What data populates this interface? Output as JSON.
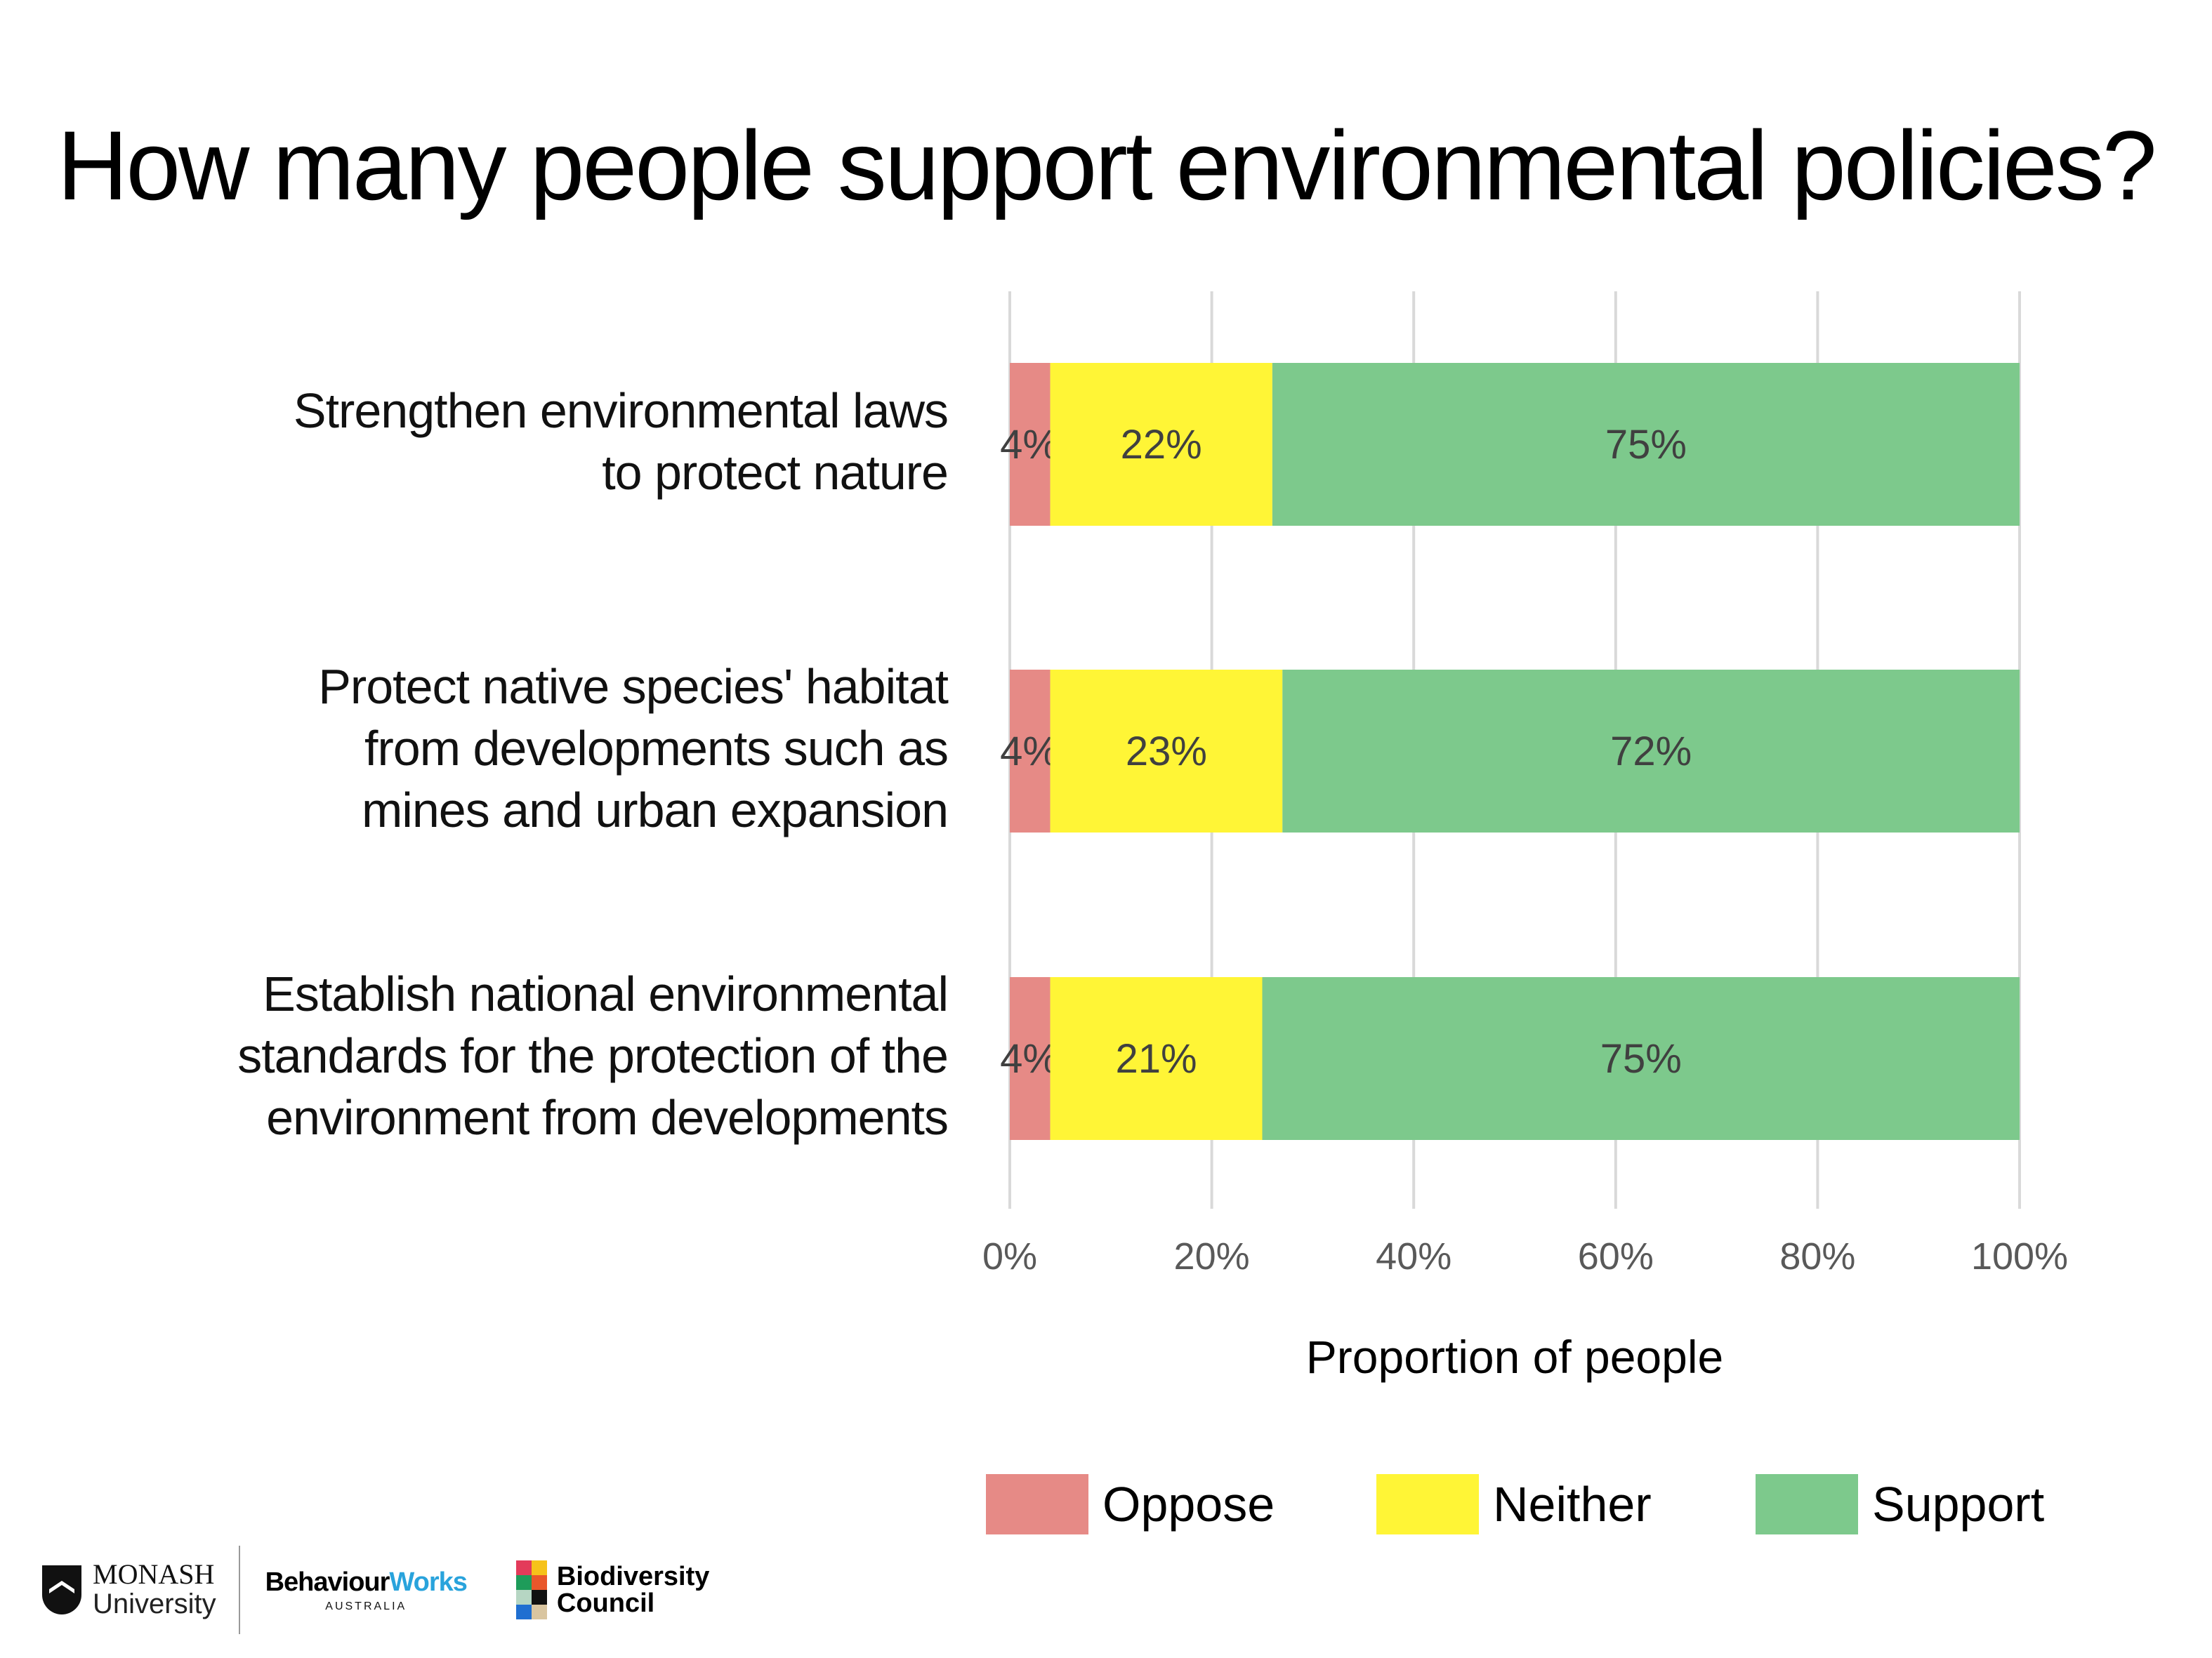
{
  "chart_data": {
    "type": "bar",
    "orientation": "horizontal",
    "stacked": true,
    "title": "How many people support environmental policies?",
    "xlabel": "Proportion of people",
    "ylabel": "",
    "xlim": [
      0,
      100
    ],
    "x_ticks": [
      "0%",
      "20%",
      "40%",
      "60%",
      "80%",
      "100%"
    ],
    "x_tick_values": [
      0,
      20,
      40,
      60,
      80,
      100
    ],
    "grid": true,
    "legend_position": "bottom-right",
    "categories": [
      "Strengthen environmental laws to protect nature",
      "Protect native species' habitat from developments such as mines and urban expansion",
      "Establish national environmental standards for the protection of the environment from developments"
    ],
    "category_lines": [
      [
        "Strengthen environmental laws",
        "to protect nature"
      ],
      [
        "Protect native species' habitat",
        "from developments such as",
        "mines and urban expansion"
      ],
      [
        "Establish national environmental",
        "standards for the protection of the",
        "environment from developments"
      ]
    ],
    "series": [
      {
        "name": "Oppose",
        "color": "#e68a86",
        "values": [
          4,
          4,
          4
        ],
        "labels": [
          "4%",
          "4%",
          "4%"
        ]
      },
      {
        "name": "Neither",
        "color": "#fff536",
        "values": [
          22,
          23,
          21
        ],
        "labels": [
          "22%",
          "23%",
          "21%"
        ]
      },
      {
        "name": "Support",
        "color": "#7dc98c",
        "values": [
          75,
          72,
          75
        ],
        "labels": [
          "75%",
          "72%",
          "75%"
        ]
      }
    ]
  },
  "colors": {
    "gridline": "#d9d9d9",
    "data_label": "#404040",
    "tick_label": "#595959"
  },
  "logos": {
    "monash_line1": "MONASH",
    "monash_line2": "University",
    "behaviourworks_part1": "Behaviour",
    "behaviourworks_part2": "Works",
    "behaviourworks_sub": "AUSTRALIA",
    "biodiversity_line1": "Biodiversity",
    "biodiversity_line2": "Council"
  }
}
